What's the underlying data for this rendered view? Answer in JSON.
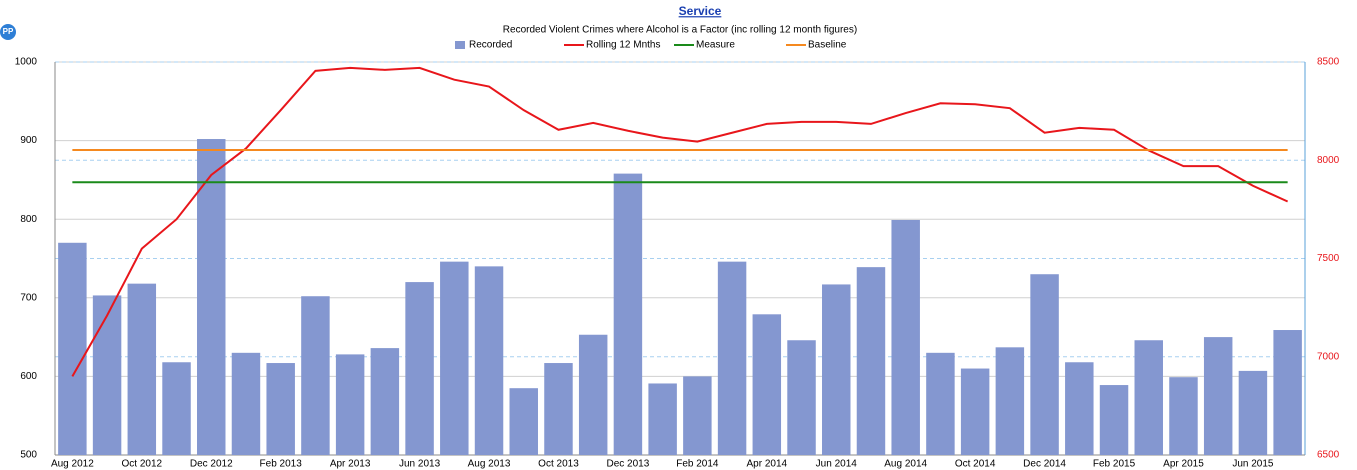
{
  "logo_text": "PP",
  "chart_data": {
    "type": "bar",
    "title": "Service",
    "subtitle": "Recorded Violent Crimes where Alcohol is a Factor (inc rolling 12 month figures)",
    "categories": [
      "Aug 2012",
      null,
      "Oct 2012",
      null,
      "Dec 2012",
      null,
      "Feb 2013",
      null,
      "Apr 2013",
      null,
      "Jun 2013",
      null,
      "Aug 2013",
      null,
      "Oct 2013",
      null,
      "Dec 2013",
      null,
      "Feb 2014",
      null,
      "Apr 2014",
      null,
      "Jun 2014",
      null,
      "Aug 2014",
      null,
      "Oct 2014",
      null,
      "Dec 2014",
      null,
      "Feb 2015",
      null,
      "Apr 2015",
      null,
      "Jun 2015",
      null
    ],
    "series": [
      {
        "name": "Recorded",
        "type": "bar",
        "color": "#8497d0",
        "values": [
          770,
          703,
          718,
          618,
          902,
          630,
          617,
          702,
          628,
          636,
          720,
          746,
          740,
          585,
          617,
          653,
          858,
          591,
          600,
          746,
          679,
          646,
          717,
          739,
          799,
          630,
          610,
          637,
          730,
          618,
          589,
          646,
          599,
          650,
          607,
          659
        ]
      },
      {
        "name": "Rolling 12 Mnths",
        "type": "line",
        "axis": "y2",
        "color": "#e8161b",
        "values": [
          6900,
          7210,
          7550,
          7700,
          7925,
          8060,
          8255,
          8455,
          8470,
          8460,
          8470,
          8410,
          8375,
          8255,
          8155,
          8190,
          8150,
          8115,
          8095,
          8140,
          8185,
          8195,
          8195,
          8185,
          8240,
          8290,
          8285,
          8265,
          8140,
          8165,
          8155,
          8050,
          7970,
          7970,
          7870,
          7790
        ]
      },
      {
        "name": "Measure",
        "type": "line",
        "color": "#1a8a1a",
        "values": [
          847,
          847,
          847,
          847,
          847,
          847,
          847,
          847,
          847,
          847,
          847,
          847,
          847,
          847,
          847,
          847,
          847,
          847,
          847,
          847,
          847,
          847,
          847,
          847,
          847,
          847,
          847,
          847,
          847,
          847,
          847,
          847,
          847,
          847,
          847,
          847
        ]
      },
      {
        "name": "Baseline",
        "type": "line",
        "color": "#f5891f",
        "values": [
          888,
          888,
          888,
          888,
          888,
          888,
          888,
          888,
          888,
          888,
          888,
          888,
          888,
          888,
          888,
          888,
          888,
          888,
          888,
          888,
          888,
          888,
          888,
          888,
          888,
          888,
          888,
          888,
          888,
          888,
          888,
          888,
          888,
          888,
          888,
          888
        ]
      }
    ],
    "ylim": [
      500,
      1000
    ],
    "yticks": [
      500,
      600,
      700,
      800,
      900,
      1000
    ],
    "y2lim": [
      6500,
      8500
    ],
    "y2ticks": [
      6500,
      7000,
      7500,
      8000,
      8500
    ],
    "grid": true,
    "legend": "top"
  }
}
